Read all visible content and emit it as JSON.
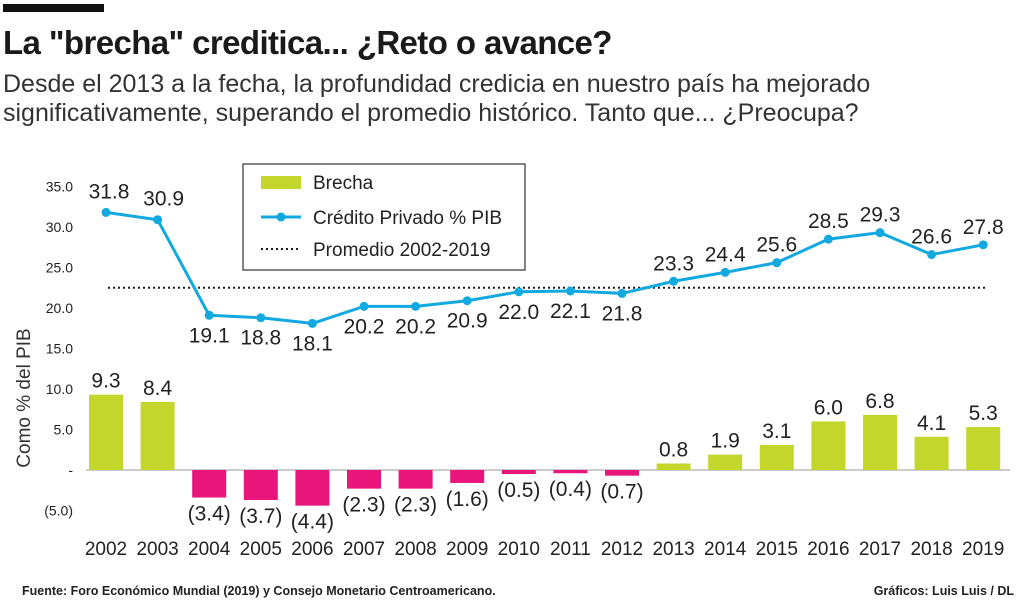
{
  "header": {
    "title": "La \"brecha\" creditica... ¿Reto o avance?",
    "subtitle_line1": "Desde el 2013 a la fecha, la profundidad credicia en nuestro país ha mejorado",
    "subtitle_line2": "significativamente, superando el promedio histórico. Tanto que... ¿Preocupa?"
  },
  "footer": {
    "source": "Fuente:  Foro Económico Mundial (2019) y Consejo Monetario Centroamericano.",
    "credit": "Gráficos: Luis Luis / DL"
  },
  "colors": {
    "positive_bar": "#c2d62c",
    "negative_bar": "#e8157a",
    "line": "#12a8e0",
    "average_line": "#1a1a1a"
  },
  "chart_data": {
    "type": "bar",
    "ylabel": "Como % del PIB",
    "ylim": [
      -5,
      35
    ],
    "y_ticks": [
      {
        "value": 35,
        "label": "35.0"
      },
      {
        "value": 30,
        "label": "30.0"
      },
      {
        "value": 25,
        "label": "25.0"
      },
      {
        "value": 20,
        "label": "20.0"
      },
      {
        "value": 15,
        "label": "15.0"
      },
      {
        "value": 10,
        "label": "10.0"
      },
      {
        "value": 5,
        "label": "5.0"
      },
      {
        "value": 0,
        "label": "-"
      },
      {
        "value": -5,
        "label": "(5.0)"
      }
    ],
    "categories": [
      "2002",
      "2003",
      "2004",
      "2005",
      "2006",
      "2007",
      "2008",
      "2009",
      "2010",
      "2011",
      "2012",
      "2013",
      "2014",
      "2015",
      "2016",
      "2017",
      "2018",
      "2019"
    ],
    "series": [
      {
        "name": "Brecha",
        "type": "bar",
        "values": [
          9.3,
          8.4,
          -3.4,
          -3.7,
          -4.4,
          -2.3,
          -2.3,
          -1.6,
          -0.5,
          -0.4,
          -0.7,
          0.8,
          1.9,
          3.1,
          6.0,
          6.8,
          4.1,
          5.3
        ],
        "labels": [
          "9.3",
          "8.4",
          "(3.4)",
          "(3.7)",
          "(4.4)",
          "(2.3)",
          "(2.3)",
          "(1.6)",
          "(0.5)",
          "(0.4)",
          "(0.7)",
          "0.8",
          "1.9",
          "3.1",
          "6.0",
          "6.8",
          "4.1",
          "5.3"
        ]
      },
      {
        "name": "Crédito Privado % PIB",
        "type": "line",
        "values": [
          31.8,
          30.9,
          19.1,
          18.8,
          18.1,
          20.2,
          20.2,
          20.9,
          22.0,
          22.1,
          21.8,
          23.3,
          24.4,
          25.6,
          28.5,
          29.3,
          26.6,
          27.8
        ],
        "labels": [
          "31.8",
          "30.9",
          "19.1",
          "18.8",
          "18.1",
          "20.2",
          "20.2",
          "20.9",
          "22.0",
          "22.1",
          "21.8",
          "23.3",
          "24.4",
          "25.6",
          "28.5",
          "29.3",
          "26.6",
          "27.8"
        ]
      },
      {
        "name": "Promedio 2002-2019",
        "type": "reference",
        "value": 22.5
      }
    ],
    "legend_position": "top-left"
  }
}
